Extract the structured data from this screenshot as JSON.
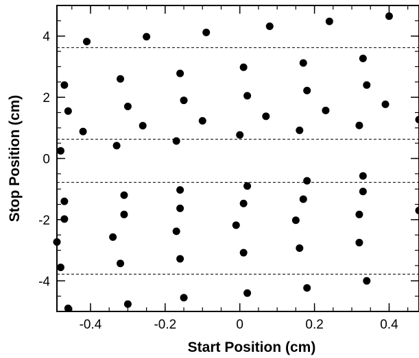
{
  "chart_data": {
    "type": "scatter",
    "xlabel": "Start Position (cm)",
    "ylabel": "Stop Position (cm)",
    "xlim": [
      -0.49,
      0.48
    ],
    "ylim": [
      -5.0,
      5.0
    ],
    "xticks": [
      {
        "value": -0.4,
        "label": "-0.4"
      },
      {
        "value": -0.2,
        "label": "-0.2"
      },
      {
        "value": 0,
        "label": "0"
      },
      {
        "value": 0.2,
        "label": "0.2"
      },
      {
        "value": 0.4,
        "label": "0.4"
      }
    ],
    "yticks": [
      {
        "value": -4,
        "label": "-4"
      },
      {
        "value": -2,
        "label": "-2"
      },
      {
        "value": 0,
        "label": "0"
      },
      {
        "value": 2,
        "label": "2"
      },
      {
        "value": 4,
        "label": "4"
      }
    ],
    "x_minor_step": 0.05,
    "y_minor_step": 0.5,
    "reference_lines": [
      3.62,
      0.63,
      -0.78,
      -3.78
    ],
    "grid": false,
    "legend": "none",
    "marker_color": "#000000",
    "points": [
      {
        "x": -0.47,
        "y": 2.4
      },
      {
        "x": -0.46,
        "y": 1.55
      },
      {
        "x": -0.48,
        "y": 0.25
      },
      {
        "x": -0.47,
        "y": -1.4
      },
      {
        "x": -0.47,
        "y": -1.98
      },
      {
        "x": -0.49,
        "y": -2.73
      },
      {
        "x": -0.48,
        "y": -3.56
      },
      {
        "x": -0.46,
        "y": -4.9
      },
      {
        "x": -0.41,
        "y": 3.82
      },
      {
        "x": -0.42,
        "y": 0.88
      },
      {
        "x": -0.32,
        "y": 2.6
      },
      {
        "x": -0.3,
        "y": 1.7
      },
      {
        "x": -0.33,
        "y": 0.42
      },
      {
        "x": -0.31,
        "y": -1.2
      },
      {
        "x": -0.31,
        "y": -1.83
      },
      {
        "x": -0.34,
        "y": -2.57
      },
      {
        "x": -0.32,
        "y": -3.43
      },
      {
        "x": -0.3,
        "y": -4.76
      },
      {
        "x": -0.25,
        "y": 3.98
      },
      {
        "x": -0.26,
        "y": 1.07
      },
      {
        "x": -0.16,
        "y": 2.78
      },
      {
        "x": -0.15,
        "y": 1.9
      },
      {
        "x": -0.17,
        "y": 0.57
      },
      {
        "x": -0.16,
        "y": -1.03
      },
      {
        "x": -0.16,
        "y": -1.63
      },
      {
        "x": -0.17,
        "y": -2.38
      },
      {
        "x": -0.16,
        "y": -3.28
      },
      {
        "x": -0.15,
        "y": -4.55
      },
      {
        "x": -0.09,
        "y": 4.12
      },
      {
        "x": -0.1,
        "y": 1.23
      },
      {
        "x": 0.01,
        "y": 2.98
      },
      {
        "x": 0.02,
        "y": 2.05
      },
      {
        "x": 0.0,
        "y": 0.77
      },
      {
        "x": 0.02,
        "y": -0.9
      },
      {
        "x": 0.01,
        "y": -1.47
      },
      {
        "x": -0.01,
        "y": -2.18
      },
      {
        "x": 0.01,
        "y": -3.08
      },
      {
        "x": 0.02,
        "y": -4.4
      },
      {
        "x": 0.08,
        "y": 4.32
      },
      {
        "x": 0.07,
        "y": 1.38
      },
      {
        "x": 0.17,
        "y": 3.12
      },
      {
        "x": 0.18,
        "y": 2.22
      },
      {
        "x": 0.16,
        "y": 0.92
      },
      {
        "x": 0.18,
        "y": -0.73
      },
      {
        "x": 0.17,
        "y": -1.33
      },
      {
        "x": 0.15,
        "y": -2.02
      },
      {
        "x": 0.16,
        "y": -2.93
      },
      {
        "x": 0.18,
        "y": -4.23
      },
      {
        "x": 0.24,
        "y": 4.48
      },
      {
        "x": 0.23,
        "y": 1.57
      },
      {
        "x": 0.33,
        "y": 3.27
      },
      {
        "x": 0.34,
        "y": 2.4
      },
      {
        "x": 0.32,
        "y": 1.08
      },
      {
        "x": 0.33,
        "y": -0.57
      },
      {
        "x": 0.33,
        "y": -1.08
      },
      {
        "x": 0.32,
        "y": -1.83
      },
      {
        "x": 0.32,
        "y": -2.75
      },
      {
        "x": 0.34,
        "y": -4.0
      },
      {
        "x": 0.4,
        "y": 4.65
      },
      {
        "x": 0.39,
        "y": 1.77
      },
      {
        "x": 0.48,
        "y": 1.27
      },
      {
        "x": 0.48,
        "y": -1.7
      }
    ]
  }
}
